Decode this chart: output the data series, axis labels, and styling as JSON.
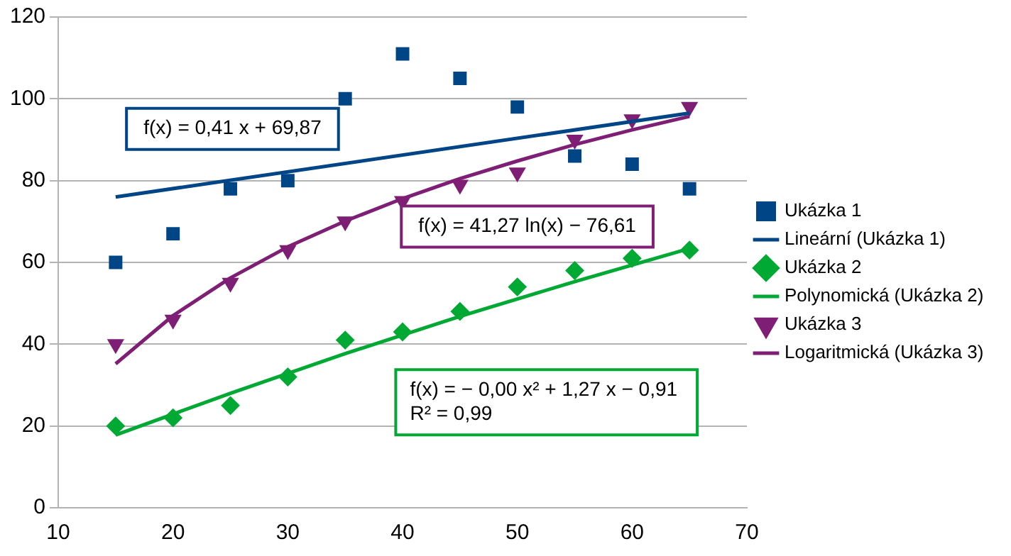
{
  "chart_data": {
    "type": "scatter",
    "xlim": [
      10,
      70
    ],
    "xticks": [
      10,
      20,
      30,
      40,
      50,
      60,
      70
    ],
    "ylim": [
      0,
      120
    ],
    "yticks": [
      0,
      20,
      40,
      60,
      80,
      100,
      120
    ],
    "grid": "y",
    "legend": "right",
    "x": [
      15,
      20,
      25,
      30,
      35,
      40,
      45,
      50,
      55,
      60,
      65
    ],
    "series": [
      {
        "name": "Ukázka 1",
        "type": "scatter",
        "marker": "square",
        "color": "#004586",
        "values": [
          60,
          67,
          78,
          80,
          100,
          111,
          105,
          98,
          86,
          84,
          78
        ]
      },
      {
        "name": "Lineární (Ukázka 1)",
        "type": "line",
        "marker": "none",
        "color": "#004586",
        "x": [
          15,
          65
        ],
        "values": [
          76.0,
          96.5
        ]
      },
      {
        "name": "Ukázka 2",
        "type": "scatter",
        "marker": "diamond",
        "color": "#00a933",
        "values": [
          20,
          22,
          25,
          32,
          41,
          43,
          48,
          54,
          58,
          61,
          63
        ]
      },
      {
        "name": "Polynomická (Ukázka 2)",
        "type": "line",
        "marker": "none",
        "color": "#00a933",
        "x": [
          15,
          25,
          35,
          45,
          55,
          65
        ],
        "values": [
          17.8,
          28,
          37.7,
          46.8,
          55.3,
          63.4
        ]
      },
      {
        "name": "Ukázka 3",
        "type": "scatter",
        "marker": "triangle",
        "color": "#7e1e74",
        "values": [
          40,
          46,
          55,
          63,
          70,
          75,
          79,
          82,
          90,
          95,
          98
        ]
      },
      {
        "name": "Logaritmická (Ukázka 3)",
        "type": "line",
        "marker": "none",
        "color": "#7e1e74",
        "x": [
          15,
          20,
          25,
          30,
          35,
          40,
          45,
          50,
          55,
          60,
          65
        ],
        "values": [
          35.2,
          47.0,
          56.2,
          63.8,
          70.1,
          75.6,
          80.5,
          84.8,
          88.8,
          92.4,
          95.7
        ]
      }
    ],
    "annotations": [
      "f(x) = 0,41 x + 69,87",
      "f(x) = 41,27 ln(x) − 76,61",
      "f(x) = − 0,00 x² + 1,27 x − 0,91\nR² = 0,99"
    ]
  }
}
